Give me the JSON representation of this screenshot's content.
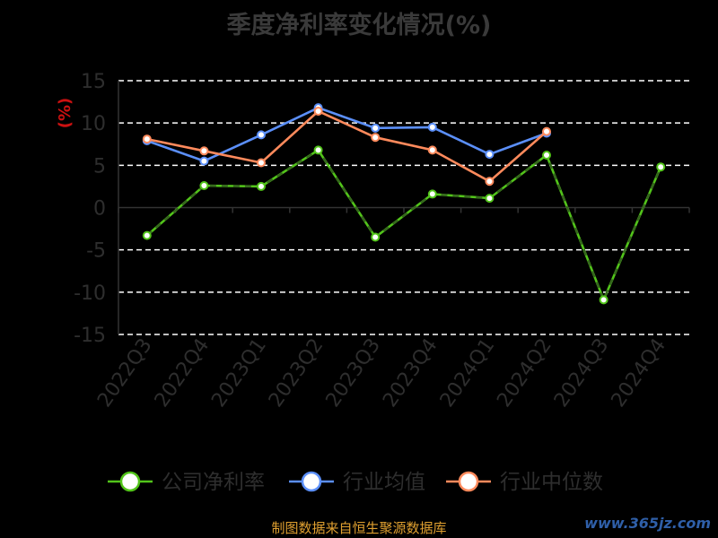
{
  "chart_data": {
    "type": "line",
    "title": "季度净利率变化情况(%)",
    "ylabel": "(%)",
    "xlabel": "",
    "categories": [
      "2022Q3",
      "2022Q4",
      "2023Q1",
      "2023Q2",
      "2023Q3",
      "2023Q4",
      "2024Q1",
      "2024Q2",
      "2024Q3",
      "2024Q4"
    ],
    "ylim": [
      -15,
      15
    ],
    "yticks": [
      15,
      10,
      5,
      0,
      -5,
      -10,
      -15
    ],
    "grid": true,
    "legend_placement": "bottom",
    "series": [
      {
        "name": "公司净利率",
        "color": "#52c41a",
        "values": [
          -3.3,
          2.6,
          2.5,
          6.8,
          -3.5,
          1.6,
          1.1,
          6.2,
          -10.9,
          4.8
        ]
      },
      {
        "name": "行业均值",
        "color": "#5b8ff9",
        "values": [
          7.9,
          5.5,
          8.6,
          11.8,
          9.4,
          9.5,
          6.3,
          8.8,
          null,
          null
        ]
      },
      {
        "name": "行业中位数",
        "color": "#ff8a5c",
        "values": [
          8.1,
          6.7,
          5.3,
          11.4,
          8.3,
          6.8,
          3.1,
          9.0,
          null,
          null
        ]
      }
    ]
  },
  "footer": {
    "source": "制图数据来自恒生聚源数据库",
    "watermark": "www.365jz.com"
  }
}
